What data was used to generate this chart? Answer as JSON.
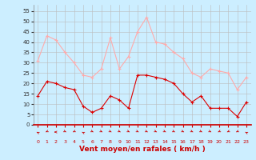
{
  "hours": [
    0,
    1,
    2,
    3,
    4,
    5,
    6,
    7,
    8,
    9,
    10,
    11,
    12,
    13,
    14,
    15,
    16,
    17,
    18,
    19,
    20,
    21,
    22,
    23
  ],
  "vent_moyen": [
    14,
    21,
    20,
    18,
    17,
    9,
    6,
    8,
    14,
    12,
    8,
    24,
    24,
    23,
    22,
    20,
    15,
    11,
    14,
    8,
    8,
    8,
    4,
    11
  ],
  "rafales": [
    31,
    43,
    41,
    35,
    30,
    24,
    23,
    27,
    42,
    27,
    33,
    45,
    52,
    40,
    39,
    35,
    32,
    25,
    23,
    27,
    26,
    25,
    17,
    23
  ],
  "color_moyen": "#dd0000",
  "color_rafales": "#ffaaaa",
  "bg_color": "#cceeff",
  "grid_color": "#bbbbbb",
  "xlabel": "Vent moyen/en rafales ( km/h )",
  "xlabel_color": "#cc0000",
  "ylabel_ticks": [
    0,
    5,
    10,
    15,
    20,
    25,
    30,
    35,
    40,
    45,
    50,
    55
  ],
  "ylim": [
    0,
    58
  ],
  "xlim": [
    -0.5,
    23.5
  ]
}
